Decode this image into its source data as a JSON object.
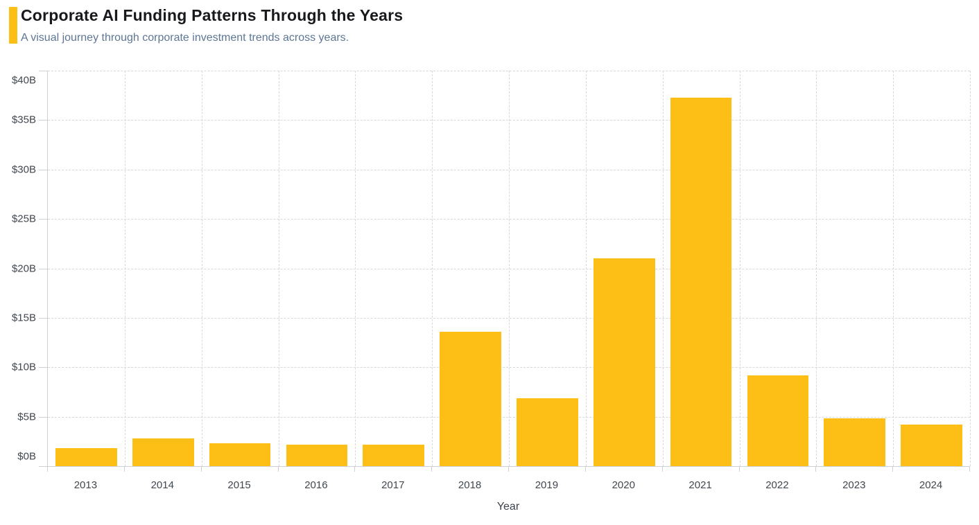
{
  "header": {
    "title": "Corporate AI Funding Patterns Through the Years",
    "subtitle": "A visual journey through corporate investment trends across years."
  },
  "chart_data": {
    "type": "bar",
    "title": "Corporate AI Funding Patterns Through the Years",
    "subtitle": "A visual journey through corporate investment trends across years.",
    "categories": [
      "2013",
      "2014",
      "2015",
      "2016",
      "2017",
      "2018",
      "2019",
      "2020",
      "2021",
      "2022",
      "2023",
      "2024"
    ],
    "values": [
      1.8,
      2.8,
      2.3,
      2.2,
      2.2,
      13.6,
      6.9,
      21.0,
      37.3,
      9.2,
      4.8,
      4.2
    ],
    "value_prefix": "$",
    "value_suffix": "B",
    "xlabel": "Year",
    "ylabel": "",
    "ylim": [
      0,
      40
    ],
    "ytick_step": 5,
    "ytick_labels": [
      "$0B",
      "$5B",
      "$10B",
      "$15B",
      "$20B",
      "$25B",
      "$30B",
      "$35B",
      "$40B"
    ],
    "grid": true,
    "legend": false,
    "bar_color": "#FDBE16"
  },
  "colors": {
    "accent": "#FDBE16",
    "title_text": "#17191c",
    "subtitle_text": "#5d7694",
    "axis_line": "#cdd0d5",
    "gridline": "#d7d8dc",
    "tick_text": "#40474e",
    "background": "#ffffff"
  }
}
